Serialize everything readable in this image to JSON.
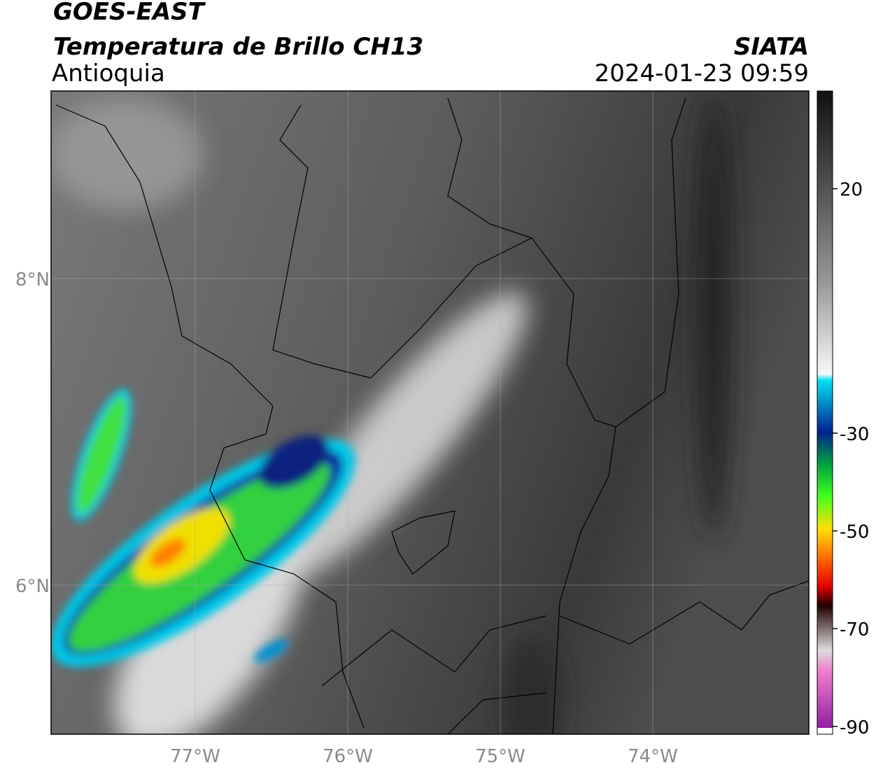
{
  "header": {
    "title": "GOES-EAST",
    "subtitle": "Temperatura de Brillo CH13",
    "region": "Antioquia",
    "agency": "SIATA",
    "datetime": "2024-01-23 09:59"
  },
  "map": {
    "lonlim": [
      -77.945,
      -72.977
    ],
    "latlim": [
      5.027,
      9.224
    ],
    "lon_ticks": [
      {
        "value": -77,
        "label": "77°W"
      },
      {
        "value": -76,
        "label": "76°W"
      },
      {
        "value": -75,
        "label": "75°W"
      },
      {
        "value": -74,
        "label": "74°W"
      }
    ],
    "lat_ticks": [
      {
        "value": 8,
        "label": "8°N"
      },
      {
        "value": 6,
        "label": "6°N"
      }
    ]
  },
  "colorbar": {
    "lim": [
      -91.6,
      40
    ],
    "ticks": [
      20,
      -30,
      -50,
      -70,
      -90
    ]
  }
}
